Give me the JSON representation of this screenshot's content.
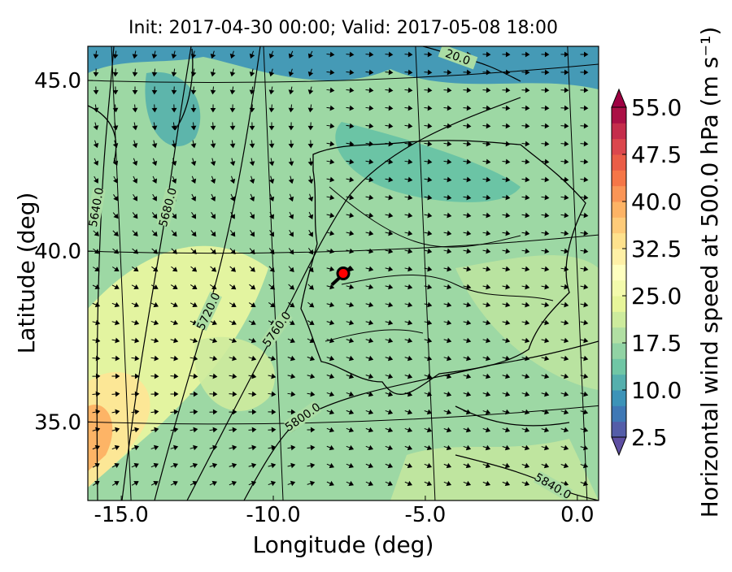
{
  "chart_data": {
    "type": "contour-map",
    "title": "Init: 2017-04-30 00:00; Valid: 2017-05-08 18:00",
    "x_label": "Longitude (deg)",
    "y_label": "Latitude (deg)",
    "colorbar_label": "Horizontal wind speed at 500.0 hPa (m s⁻¹)",
    "colormap": "Spectral_r",
    "xlim": [
      -16.1,
      0.7
    ],
    "ylim": [
      32.7,
      46.0
    ],
    "xticks": [
      {
        "value": -15,
        "label": "-15.0"
      },
      {
        "value": -10,
        "label": "-10.0"
      },
      {
        "value": -5,
        "label": "-5.0"
      },
      {
        "value": 0,
        "label": "0.0"
      }
    ],
    "yticks": [
      {
        "value": 35,
        "label": "35.0"
      },
      {
        "value": 40,
        "label": "40.0"
      },
      {
        "value": 45,
        "label": "45.0"
      }
    ],
    "grid": true,
    "clim": [
      2.5,
      55
    ],
    "cticks": [
      2.5,
      {
        "value": 10,
        "label": "10.0"
      },
      17.5,
      {
        "value": 25,
        "label": "25.0"
      },
      32.5,
      {
        "value": 40,
        "label": "40.0"
      },
      47.5,
      {
        "value": 55,
        "label": "55.0"
      }
    ],
    "contours": [
      {
        "value": 5640,
        "label": "5640.0"
      },
      {
        "value": 5680,
        "label": "5680.0"
      },
      {
        "value": 5720,
        "label": "5720.0"
      },
      {
        "value": 5760,
        "label": "5760.0"
      },
      {
        "value": 5800,
        "label": "5800.0"
      },
      {
        "value": 5840,
        "label": "5840.0"
      },
      {
        "value": 20,
        "label": "20.0"
      }
    ],
    "marker": {
      "lon": -7.7,
      "lat": 39.35,
      "color": "#ff0000"
    }
  }
}
